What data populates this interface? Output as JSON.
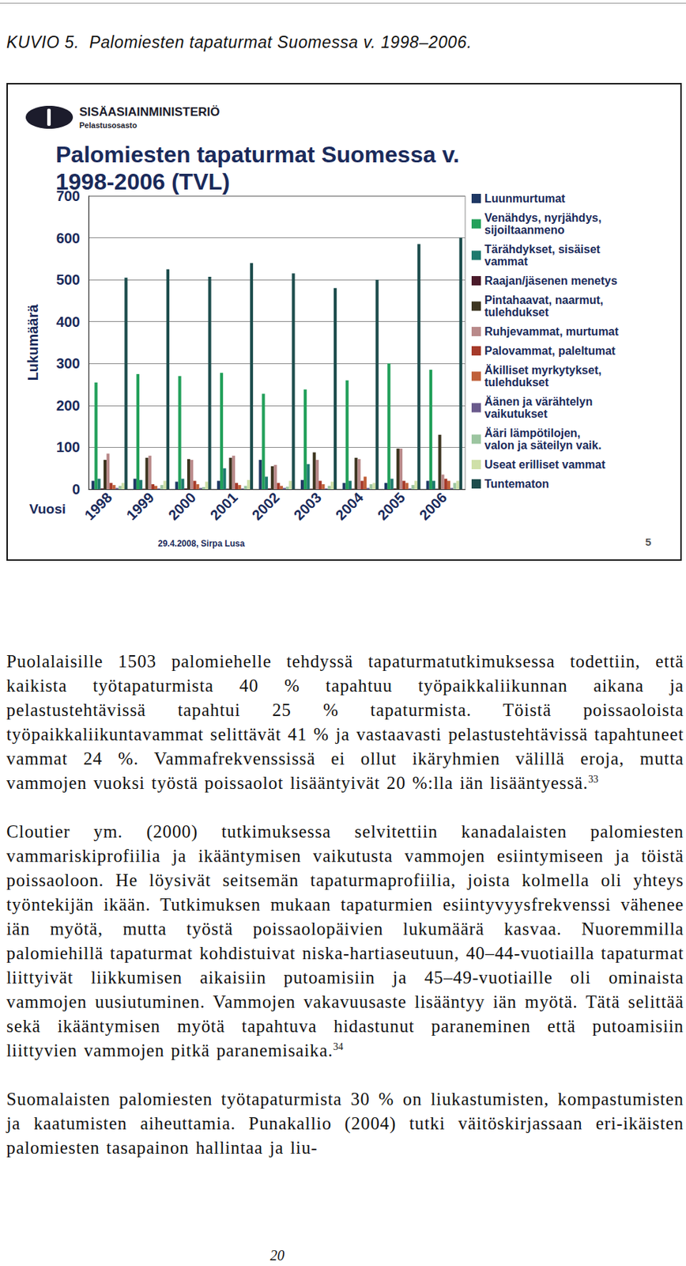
{
  "caption": {
    "label": "KUVIO 5.",
    "text": "Palomiesten tapaturmat Suomessa v. 1998–2006."
  },
  "slide": {
    "header": "SISÄASIAINMINISTERIÖ",
    "department": "Pelastusosasto",
    "footer": "29.4.2008, Sirpa Lusa",
    "slide_number": "5"
  },
  "chart_data": {
    "type": "bar",
    "title": "Palomiesten tapaturmat Suomessa v. 1998-2006 (TVL)",
    "xlabel": "Vuosi",
    "ylabel": "Lukumäärä",
    "categories": [
      "1998",
      "1999",
      "2000",
      "2001",
      "2002",
      "2003",
      "2004",
      "2005",
      "2006"
    ],
    "series": [
      {
        "name": "Luunmurtumat",
        "color": "#1f3864",
        "values": [
          20,
          25,
          18,
          20,
          70,
          22,
          15,
          15,
          20
        ]
      },
      {
        "name": "Venähdys, nyrjähdys, sijoiltaanmeno",
        "color": "#22a05a",
        "values": [
          255,
          275,
          270,
          278,
          228,
          238,
          260,
          300,
          285
        ]
      },
      {
        "name": "Tärähdykset, sisäiset vammat",
        "color": "#1e7a6e",
        "values": [
          25,
          22,
          25,
          50,
          30,
          60,
          20,
          25,
          20
        ]
      },
      {
        "name": "Raajan/jäsenen menetys",
        "color": "#4a1a2a",
        "values": [
          2,
          1,
          2,
          1,
          2,
          1,
          1,
          2,
          1
        ]
      },
      {
        "name": "Pintahaavat, naarmut, tulehdukset",
        "color": "#3d3520",
        "values": [
          70,
          75,
          72,
          75,
          55,
          88,
          75,
          97,
          130
        ]
      },
      {
        "name": "Ruhjevammat, murtumat",
        "color": "#b98a8a",
        "values": [
          85,
          80,
          70,
          80,
          58,
          70,
          72,
          97,
          35
        ]
      },
      {
        "name": "Palovammat, paleltumat",
        "color": "#a63a2a",
        "values": [
          15,
          12,
          20,
          15,
          15,
          20,
          20,
          20,
          25
        ]
      },
      {
        "name": "Äkilliset myrkytykset, tulehdukset",
        "color": "#c0603a",
        "values": [
          10,
          8,
          12,
          10,
          8,
          12,
          30,
          15,
          20
        ]
      },
      {
        "name": "Äänen ja värähtelyn vaikutukset",
        "color": "#6a5a8c",
        "values": [
          3,
          2,
          3,
          2,
          3,
          2,
          3,
          2,
          3
        ]
      },
      {
        "name": "Ääri lämpötilojen, valon ja säteilyn vaik.",
        "color": "#9cc5a0",
        "values": [
          8,
          10,
          5,
          8,
          6,
          8,
          12,
          10,
          15
        ]
      },
      {
        "name": "Useat erilliset vammat",
        "color": "#cfe0a8",
        "values": [
          15,
          20,
          18,
          22,
          20,
          18,
          15,
          20,
          20
        ]
      },
      {
        "name": "Tuntematon",
        "color": "#1d4d4d",
        "values": [
          505,
          525,
          507,
          540,
          515,
          480,
          500,
          585,
          600
        ]
      }
    ],
    "ylim": [
      0,
      700
    ],
    "yticks": [
      0,
      100,
      200,
      300,
      400,
      500,
      600,
      700
    ],
    "grid": true,
    "legend": "right"
  },
  "paragraphs": [
    {
      "text": "Puolalaisille 1503 palomiehelle tehdyssä tapaturmatutkimuksessa todettiin, että kaikista työtapaturmista 40 % tapahtuu työpaikkaliikunnan aikana ja pelastustehtävissä tapahtui 25 % tapaturmista. Töistä poissaoloista työpaikkaliikuntavammat selittävät 41 % ja vastaavasti pelastustehtävissä tapahtuneet vammat 24 %. Vammafrekvenssissä ei ollut ikäryhmien välillä eroja, mutta vammojen vuoksi työstä poissaolot lisääntyivät 20 %:lla iän lisääntyessä.",
      "ref": "33"
    },
    {
      "text": "Cloutier ym. (2000) tutkimuksessa selvitettiin kanadalaisten palomiesten vammariskiprofiilia ja ikääntymisen vaikutusta vammojen esiintymiseen ja töistä poissaoloon. He löysivät seitsemän tapaturmaprofiilia, joista kolmella oli yhteys työntekijän ikään. Tutkimuksen mukaan tapaturmien esiintyvyysfrekvenssi vähenee iän myötä, mutta työstä poissaolopäivien lukumäärä kasvaa. Nuoremmilla palomiehillä tapaturmat kohdistuivat niska-hartiaseutuun, 40–44-vuotiailla tapaturmat liittyivät liikkumisen aikaisiin putoamisiin ja 45–49-vuotiaille oli ominaista vammojen uusiutuminen. Vammojen vakavuusaste lisääntyy iän myötä. Tätä selittää sekä ikääntymisen myötä tapahtuva hidastunut paraneminen että putoamisiin liittyvien vammojen pitkä paranemisaika.",
      "ref": "34"
    },
    {
      "text": "Suomalaisten palomiesten työtapaturmista 30 % on liukastumisten, kompastumisten ja kaatumisten aiheuttamia. Punakallio (2004) tutki väitöskirjassaan eri-ikäisten palomiesten tasapainon hallintaa ja liu-"
    }
  ],
  "page_number": "20"
}
